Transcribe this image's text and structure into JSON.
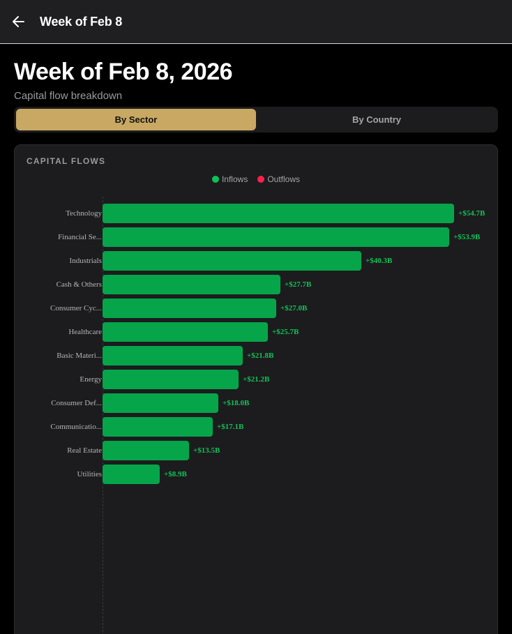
{
  "topbar": {
    "title": "Week of Feb 8",
    "back_icon": "arrow-left-icon"
  },
  "header": {
    "title": "Week of Feb 8, 2026",
    "subtitle": "Capital flow breakdown"
  },
  "tabs": [
    {
      "label": "By Sector",
      "active": true
    },
    {
      "label": "By Country",
      "active": false
    }
  ],
  "card": {
    "title": "CAPITAL FLOWS",
    "legend": [
      {
        "label": "Inflows",
        "color": "#0fc157"
      },
      {
        "label": "Outflows",
        "color": "#ff1f4b"
      }
    ]
  },
  "colors": {
    "accent": "#c8a862",
    "inflow_bar": "#06a54a",
    "inflow_text": "#11c255",
    "outflow": "#ff1f4b"
  },
  "chart_data": {
    "type": "bar",
    "orientation": "horizontal",
    "title": "CAPITAL FLOWS",
    "xlabel": "",
    "ylabel": "",
    "unit": "$B",
    "legend": [
      "Inflows",
      "Outflows"
    ],
    "legend_position": "top",
    "categories": [
      "Technology",
      "Financial Se...",
      "Industrials",
      "Cash & Others",
      "Consumer Cyc...",
      "Healthcare",
      "Basic Materi...",
      "Energy",
      "Consumer Def...",
      "Communicatio...",
      "Real Estate",
      "Utilities"
    ],
    "series": [
      {
        "name": "Inflows",
        "values": [
          54.7,
          53.9,
          40.3,
          27.7,
          27.0,
          25.7,
          21.8,
          21.2,
          18.0,
          17.1,
          13.5,
          8.9
        ]
      }
    ],
    "labels": [
      "+$54.7B",
      "+$53.9B",
      "+$40.3B",
      "+$27.7B",
      "+$27.0B",
      "+$25.7B",
      "+$21.8B",
      "+$21.2B",
      "+$18.0B",
      "+$17.1B",
      "+$13.5B",
      "+$8.9B"
    ],
    "grid": false,
    "xlim": [
      0,
      54.7
    ]
  }
}
